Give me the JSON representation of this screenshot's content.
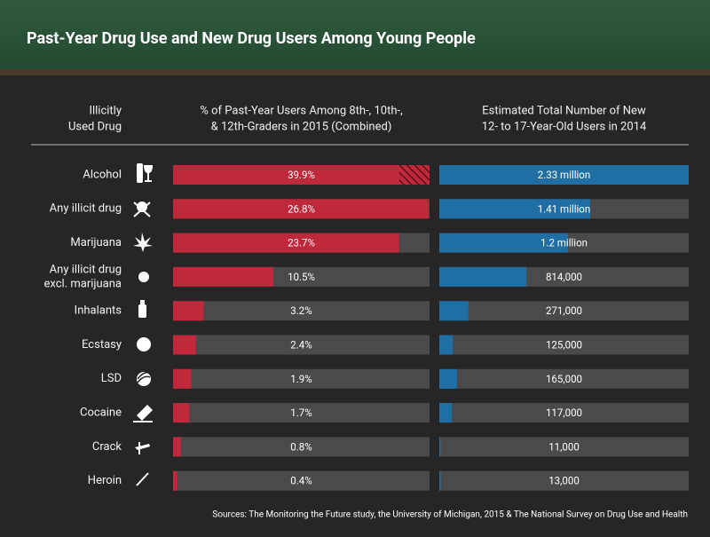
{
  "title": "Past-Year Drug Use and New Drug Users Among Young People",
  "row_header": [
    "Illicitly",
    "Used Drug"
  ],
  "source": "Sources: The Monitoring the Future study, the University of Michigan, 2015 & The National Survey on Drug Use and Health",
  "chart_data": [
    {
      "type": "bar",
      "orientation": "horizontal",
      "title": [
        "% of Past-Year Users Among 8th-, 10th-,",
        "& 12th-Graders in 2015 (Combined)"
      ],
      "categories": [
        [
          "Alcohol"
        ],
        [
          "Any illicit drug"
        ],
        [
          "Marijuana"
        ],
        [
          "Any illicit drug",
          "excl. marijuana"
        ],
        [
          "Inhalants"
        ],
        [
          "Ecstasy"
        ],
        [
          "LSD"
        ],
        [
          "Cocaine"
        ],
        [
          "Crack"
        ],
        [
          "Heroin"
        ]
      ],
      "values": [
        39.9,
        26.8,
        23.7,
        10.5,
        3.2,
        2.4,
        1.9,
        1.7,
        0.8,
        0.4
      ],
      "value_labels": [
        "39.9%",
        "26.8%",
        "23.7%",
        "10.5%",
        "3.2%",
        "2.4%",
        "1.9%",
        "1.7%",
        "0.8%",
        "0.4%"
      ],
      "color": "#c0283c",
      "xlim": [
        0,
        26.9
      ]
    },
    {
      "type": "bar",
      "orientation": "horizontal",
      "title": [
        "Estimated Total Number of New",
        "12- to 17-Year-Old Users in 2014"
      ],
      "values": [
        2330000,
        1410000,
        1200000,
        814000,
        271000,
        125000,
        165000,
        117000,
        11000,
        13000
      ],
      "value_labels": [
        "2.33 million",
        "1.41 million",
        "1.2 million",
        "814,000",
        "271,000",
        "125,000",
        "165,000",
        "117,000",
        "11,000",
        "13,000"
      ],
      "color": "#1f6fa5",
      "xlim": [
        0,
        2330000
      ]
    }
  ]
}
